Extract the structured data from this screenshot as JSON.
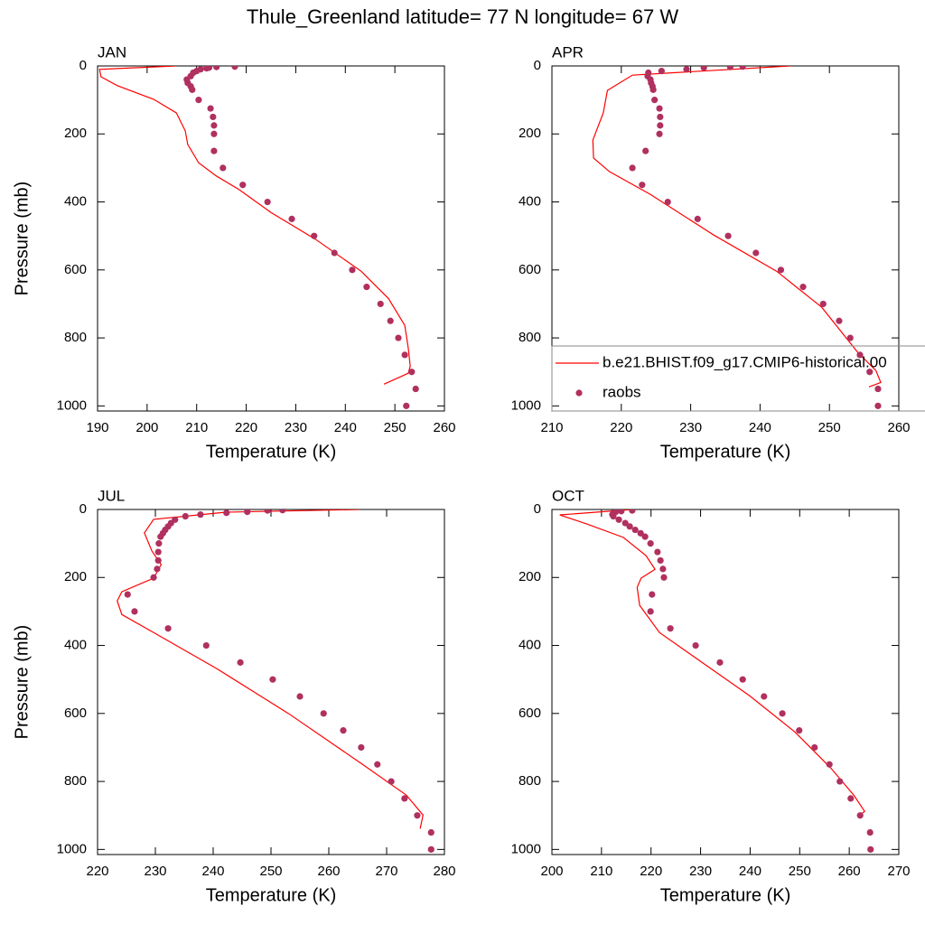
{
  "title": "Thule_Greenland  latitude= 77 N longitude= 67 W",
  "chart_data": [
    {
      "type": "line",
      "title": "JAN",
      "xlabel": "Temperature (K)",
      "ylabel": "Pressure (mb)",
      "xlim": [
        190,
        260
      ],
      "xticks": [
        190,
        200,
        210,
        220,
        230,
        240,
        250,
        260
      ],
      "ylim": [
        0,
        1015
      ],
      "yticks": [
        0,
        200,
        400,
        600,
        800,
        1000
      ],
      "y_reversed": true,
      "series": [
        {
          "color": "#ff0000",
          "style": "line",
          "x": [
            205.9,
            190.4,
            190.7,
            194,
            201.3,
            205.9,
            207.7,
            208.2,
            210.4,
            214,
            218.6,
            225,
            234.1,
            243.2,
            248.7,
            252,
            252.7,
            253.1,
            252.7,
            247.8
          ],
          "values": [
            0,
            10,
            32,
            58,
            98,
            138,
            191,
            231,
            285,
            324,
            364,
            431,
            511,
            604,
            684,
            763,
            830,
            883,
            904,
            936
          ]
        },
        {
          "color": "#b0305f",
          "style": "markers",
          "x": [
            217.7,
            214,
            212.5,
            212,
            210.8,
            210,
            209.3,
            208.8,
            208,
            208.2,
            208.8,
            209.1,
            210.4,
            212.8,
            213.3,
            213.5,
            213.5,
            213.5,
            215.3,
            219.3,
            224.3,
            229.2,
            233.7,
            237.8,
            241.4,
            244.3,
            247.1,
            249.1,
            250.7,
            252,
            253.4,
            254.2,
            252.3
          ],
          "values": [
            2,
            3,
            5,
            7,
            10,
            15,
            20,
            30,
            40,
            50,
            60,
            70,
            100,
            125,
            150,
            175,
            200,
            250,
            300,
            350,
            400,
            450,
            500,
            550,
            600,
            650,
            700,
            750,
            800,
            850,
            900,
            950,
            1000
          ]
        }
      ]
    },
    {
      "type": "line",
      "title": "APR",
      "xlabel": "Temperature (K)",
      "xlim": [
        210,
        260
      ],
      "xticks": [
        210,
        220,
        230,
        240,
        250,
        260
      ],
      "ylim": [
        0,
        1015
      ],
      "yticks": [
        0,
        200,
        400,
        600,
        800,
        1000
      ],
      "y_reversed": true,
      "legend": "lower right",
      "series": [
        {
          "name": "b.e21.BHIST.f09_g17.CMIP6-historical.00",
          "color": "#ff0000",
          "style": "line",
          "x": [
            244.4,
            221.6,
            218,
            217.4,
            215.9,
            216,
            218.3,
            224.2,
            233.3,
            242.4,
            248.9,
            254.1,
            256.7,
            257.4,
            255.7
          ],
          "values": [
            0,
            27,
            72,
            138,
            218,
            271,
            311,
            378,
            497,
            604,
            710,
            843,
            896,
            931,
            944
          ]
        },
        {
          "name": "raobs",
          "color": "#b0305f",
          "style": "markers",
          "x": [
            237.5,
            235.7,
            231.9,
            229.4,
            225.8,
            223.9,
            223.8,
            224.2,
            224.3,
            224.5,
            224.6,
            224.8,
            225.5,
            225.6,
            225.6,
            225.5,
            223.5,
            221.6,
            223,
            226.7,
            231,
            235.4,
            239.4,
            243,
            246.2,
            249.1,
            251.4,
            253,
            254.4,
            255.8,
            257,
            257
          ],
          "values": [
            2,
            3,
            5,
            10,
            15,
            20,
            30,
            40,
            50,
            60,
            70,
            100,
            125,
            150,
            175,
            200,
            250,
            300,
            350,
            400,
            450,
            500,
            550,
            600,
            650,
            700,
            750,
            800,
            850,
            900,
            950,
            1000
          ]
        }
      ]
    },
    {
      "type": "line",
      "title": "JUL",
      "xlabel": "Temperature (K)",
      "ylabel": "Pressure (mb)",
      "xlim": [
        220,
        280
      ],
      "xticks": [
        220,
        230,
        240,
        250,
        260,
        270,
        280
      ],
      "ylim": [
        0,
        1015
      ],
      "yticks": [
        0,
        200,
        400,
        600,
        800,
        1000
      ],
      "y_reversed": true,
      "series": [
        {
          "color": "#ff0000",
          "style": "line",
          "x": [
            265.3,
            242.2,
            229.7,
            228.1,
            229.4,
            231,
            229.7,
            224.2,
            223.4,
            224.2,
            229.7,
            240.6,
            253.1,
            265.6,
            273.4,
            276.3,
            275.8
          ],
          "values": [
            0,
            8,
            29,
            69,
            122,
            162,
            202,
            242,
            269,
            309,
            362,
            468,
            601,
            747,
            840,
            899,
            939
          ]
        },
        {
          "color": "#b0305f",
          "style": "markers",
          "x": [
            252,
            249.4,
            245.9,
            242.3,
            237.8,
            235.2,
            233.4,
            232.7,
            232.2,
            231.7,
            231.3,
            230.9,
            230.6,
            230.5,
            230.5,
            230.3,
            229.7,
            225.2,
            226.4,
            232.2,
            238.8,
            244.7,
            250.3,
            255,
            259.1,
            262.5,
            265.6,
            268.4,
            270.8,
            273.1,
            275.3,
            277.7,
            277.7
          ],
          "values": [
            2,
            3,
            7,
            10,
            15,
            20,
            30,
            40,
            50,
            60,
            70,
            80,
            100,
            125,
            150,
            175,
            200,
            250,
            300,
            350,
            400,
            450,
            500,
            550,
            600,
            650,
            700,
            750,
            800,
            850,
            900,
            950,
            1000
          ]
        }
      ]
    },
    {
      "type": "line",
      "title": "OCT",
      "xlabel": "Temperature (K)",
      "xlim": [
        200,
        270
      ],
      "xticks": [
        200,
        210,
        220,
        230,
        240,
        250,
        260,
        270
      ],
      "ylim": [
        0,
        1015
      ],
      "yticks": [
        0,
        200,
        400,
        600,
        800,
        1000
      ],
      "y_reversed": true,
      "series": [
        {
          "color": "#ff0000",
          "style": "line",
          "x": [
            216.2,
            201.6,
            207.1,
            214.4,
            219,
            220.8,
            218,
            217.2,
            217.7,
            221.7,
            230.8,
            239.9,
            249,
            256.3,
            260.9,
            263.1,
            261.8
          ],
          "values": [
            0,
            16,
            43,
            82,
            136,
            176,
            202,
            229,
            282,
            362,
            455,
            548,
            654,
            761,
            840,
            888,
            902
          ]
        },
        {
          "color": "#b0305f",
          "style": "markers",
          "x": [
            216.2,
            214,
            212.9,
            212.4,
            212.2,
            212.4,
            213.5,
            214.8,
            215.7,
            216.8,
            217.9,
            218.8,
            219.9,
            221.3,
            221.9,
            222.4,
            222.6,
            220.2,
            219.9,
            223.9,
            229,
            233.9,
            238.5,
            242.8,
            246.5,
            249.9,
            253,
            256,
            258.1,
            260.3,
            262.2,
            264.2,
            264.3
          ],
          "values": [
            3,
            5,
            7,
            10,
            15,
            20,
            30,
            40,
            50,
            60,
            70,
            80,
            100,
            125,
            150,
            175,
            200,
            250,
            300,
            350,
            400,
            450,
            500,
            550,
            600,
            650,
            700,
            750,
            800,
            850,
            900,
            950,
            1000
          ]
        }
      ]
    }
  ]
}
